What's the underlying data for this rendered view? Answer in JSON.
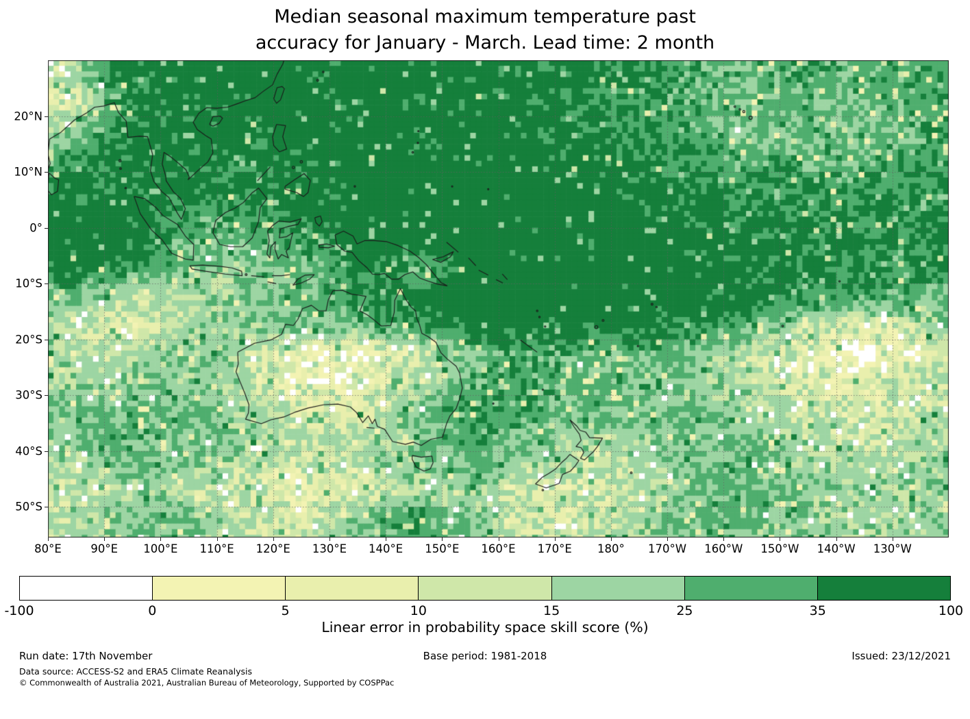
{
  "title": {
    "line1": "Median seasonal maximum temperature past",
    "line2": "accuracy for January - March. Lead time: 2 month"
  },
  "chart_data": {
    "type": "heatmap",
    "title": "Median seasonal maximum temperature past accuracy for January - March. Lead time: 2 month",
    "map_extent": {
      "lon_min": 80,
      "lon_max": 240,
      "lat_min": -55.5,
      "lat_max": 30
    },
    "grid_on": true,
    "x_ticks": [
      {
        "lon": 80,
        "label": "80°E"
      },
      {
        "lon": 90,
        "label": "90°E"
      },
      {
        "lon": 100,
        "label": "100°E"
      },
      {
        "lon": 110,
        "label": "110°E"
      },
      {
        "lon": 120,
        "label": "120°E"
      },
      {
        "lon": 130,
        "label": "130°E"
      },
      {
        "lon": 140,
        "label": "140°E"
      },
      {
        "lon": 150,
        "label": "150°E"
      },
      {
        "lon": 160,
        "label": "160°E"
      },
      {
        "lon": 170,
        "label": "170°E"
      },
      {
        "lon": 180,
        "label": "180°"
      },
      {
        "lon": 190,
        "label": "170°W"
      },
      {
        "lon": 200,
        "label": "160°W"
      },
      {
        "lon": 210,
        "label": "150°W"
      },
      {
        "lon": 220,
        "label": "140°W"
      },
      {
        "lon": 230,
        "label": "130°W"
      }
    ],
    "y_ticks": [
      {
        "lat": 20,
        "label": "20°N"
      },
      {
        "lat": 10,
        "label": "10°N"
      },
      {
        "lat": 0,
        "label": "0°"
      },
      {
        "lat": -10,
        "label": "10°S"
      },
      {
        "lat": -20,
        "label": "20°S"
      },
      {
        "lat": -30,
        "label": "30°S"
      },
      {
        "lat": -40,
        "label": "40°S"
      },
      {
        "lat": -50,
        "label": "50°S"
      }
    ],
    "colorbar": {
      "label": "Linear error in probability space skill score (%)",
      "tick_labels": [
        "-100",
        "0",
        "5",
        "10",
        "15",
        "25",
        "35",
        "100"
      ],
      "tick_values": [
        -100,
        0,
        5,
        10,
        15,
        25,
        35,
        100
      ],
      "segment_colors": [
        "#ffffff",
        "#f3f3b3",
        "#e9efad",
        "#cfe7a9",
        "#9dd5a3",
        "#4fae6e",
        "#157f3b"
      ]
    },
    "value_thresholds": [
      0,
      5,
      10,
      15,
      25,
      35
    ],
    "skill_grid": {
      "units": "%",
      "lon_start": 82.5,
      "lon_step": 5,
      "lat_start": 27.5,
      "lat_step": -5,
      "values": [
        [
          15,
          25,
          38,
          42,
          42,
          42,
          42,
          42,
          42,
          42,
          42,
          42,
          42,
          42,
          42,
          42,
          40,
          40,
          40,
          40,
          38,
          35,
          32,
          30,
          28,
          28,
          30,
          30,
          28,
          28,
          30,
          32
        ],
        [
          8,
          15,
          30,
          40,
          42,
          42,
          42,
          42,
          42,
          42,
          42,
          42,
          42,
          42,
          42,
          40,
          40,
          40,
          38,
          36,
          34,
          32,
          30,
          26,
          22,
          25,
          28,
          28,
          26,
          28,
          30,
          30
        ],
        [
          20,
          28,
          35,
          40,
          42,
          42,
          40,
          42,
          42,
          42,
          42,
          42,
          42,
          42,
          42,
          42,
          42,
          40,
          40,
          38,
          36,
          34,
          32,
          28,
          25,
          25,
          26,
          25,
          24,
          26,
          28,
          30
        ],
        [
          30,
          35,
          38,
          40,
          40,
          40,
          40,
          38,
          40,
          42,
          42,
          42,
          42,
          42,
          42,
          42,
          42,
          42,
          40,
          40,
          38,
          36,
          34,
          32,
          30,
          30,
          30,
          28,
          28,
          30,
          32,
          32
        ],
        [
          38,
          40,
          40,
          40,
          38,
          38,
          38,
          36,
          38,
          42,
          42,
          44,
          44,
          44,
          44,
          44,
          44,
          42,
          42,
          42,
          40,
          40,
          38,
          36,
          34,
          34,
          34,
          32,
          32,
          34,
          34,
          34
        ],
        [
          42,
          42,
          42,
          40,
          35,
          30,
          32,
          35,
          38,
          42,
          44,
          46,
          46,
          46,
          46,
          46,
          46,
          46,
          44,
          44,
          44,
          42,
          42,
          40,
          38,
          38,
          36,
          36,
          36,
          36,
          36,
          36
        ],
        [
          42,
          44,
          44,
          40,
          32,
          28,
          25,
          28,
          30,
          35,
          40,
          44,
          46,
          46,
          46,
          46,
          46,
          46,
          46,
          46,
          44,
          44,
          42,
          42,
          40,
          40,
          38,
          38,
          38,
          38,
          38,
          38
        ],
        [
          40,
          38,
          35,
          30,
          25,
          22,
          20,
          22,
          25,
          28,
          35,
          40,
          30,
          25,
          40,
          46,
          46,
          46,
          46,
          46,
          44,
          44,
          42,
          42,
          40,
          38,
          38,
          36,
          36,
          36,
          36,
          34
        ],
        [
          25,
          20,
          15,
          15,
          18,
          20,
          22,
          25,
          28,
          28,
          30,
          35,
          38,
          44,
          46,
          46,
          46,
          46,
          46,
          46,
          46,
          44,
          44,
          42,
          40,
          38,
          35,
          32,
          30,
          30,
          28,
          28
        ],
        [
          15,
          12,
          10,
          12,
          15,
          18,
          20,
          22,
          25,
          25,
          25,
          28,
          30,
          35,
          40,
          42,
          42,
          40,
          40,
          42,
          42,
          40,
          38,
          35,
          30,
          25,
          20,
          15,
          10,
          8,
          15,
          20
        ],
        [
          18,
          15,
          15,
          18,
          20,
          22,
          18,
          12,
          8,
          5,
          3,
          5,
          10,
          15,
          22,
          28,
          30,
          30,
          28,
          28,
          28,
          28,
          26,
          22,
          18,
          12,
          8,
          5,
          3,
          3,
          8,
          12
        ],
        [
          20,
          18,
          18,
          20,
          22,
          22,
          18,
          12,
          6,
          4,
          4,
          6,
          12,
          18,
          25,
          30,
          32,
          30,
          28,
          26,
          25,
          24,
          22,
          20,
          18,
          15,
          12,
          10,
          8,
          10,
          12,
          15
        ],
        [
          25,
          25,
          25,
          26,
          26,
          25,
          22,
          18,
          14,
          12,
          12,
          14,
          18,
          24,
          30,
          32,
          32,
          30,
          28,
          26,
          25,
          24,
          22,
          22,
          20,
          18,
          15,
          12,
          10,
          10,
          12,
          15
        ],
        [
          22,
          25,
          28,
          28,
          26,
          25,
          22,
          20,
          18,
          15,
          15,
          18,
          22,
          26,
          30,
          30,
          28,
          25,
          20,
          18,
          20,
          22,
          24,
          24,
          22,
          20,
          18,
          15,
          12,
          12,
          15,
          18
        ],
        [
          18,
          20,
          22,
          25,
          22,
          20,
          18,
          15,
          12,
          10,
          12,
          15,
          18,
          22,
          25,
          25,
          22,
          18,
          15,
          12,
          15,
          18,
          22,
          25,
          25,
          25,
          22,
          20,
          18,
          18,
          20,
          22
        ],
        [
          12,
          15,
          18,
          20,
          18,
          15,
          12,
          10,
          8,
          8,
          10,
          12,
          15,
          18,
          20,
          18,
          15,
          12,
          10,
          10,
          12,
          18,
          22,
          28,
          30,
          28,
          25,
          22,
          20,
          18,
          18,
          20
        ],
        [
          15,
          18,
          22,
          25,
          25,
          22,
          18,
          15,
          12,
          15,
          20,
          28,
          32,
          30,
          25,
          20,
          15,
          12,
          12,
          15,
          18,
          22,
          25,
          28,
          28,
          25,
          22,
          20,
          18,
          18,
          20,
          22
        ]
      ]
    }
  },
  "footer": {
    "run_date": "Run date: 17th November",
    "base_period": "Base period: 1981-2018",
    "issued": "Issued: 23/12/2021",
    "data_source": "Data source: ACCESS-S2 and ERA5 Climate Reanalysis",
    "copyright": "© Commonwealth of Australia 2021, Australian Bureau of Meteorology, Supported by COSPPac"
  }
}
